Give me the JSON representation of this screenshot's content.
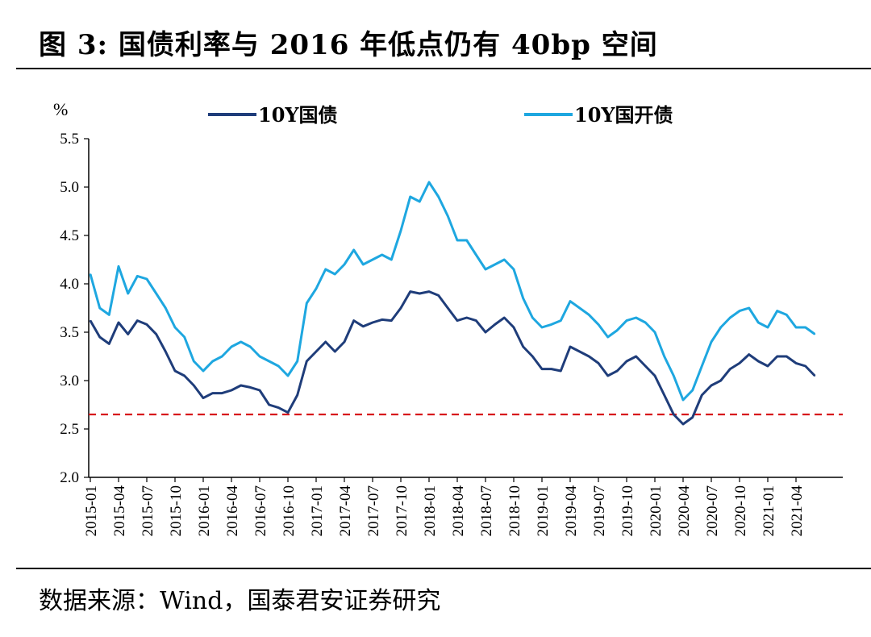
{
  "header": {
    "title": "图 3:  国债利率与 2016 年低点仍有 40bp 空间"
  },
  "footer": {
    "source": "数据来源：Wind，国泰君安证券研究"
  },
  "chart_data": {
    "type": "line",
    "title": "",
    "ylabel": "%",
    "xlabel": "",
    "ylim": [
      2.0,
      5.5
    ],
    "yticks": [
      "2.0",
      "2.5",
      "3.0",
      "3.5",
      "4.0",
      "4.5",
      "5.0",
      "5.5"
    ],
    "categories": [
      "2015-01",
      "2015-04",
      "2015-07",
      "2015-10",
      "2016-01",
      "2016-04",
      "2016-07",
      "2016-10",
      "2017-01",
      "2017-04",
      "2017-07",
      "2017-10",
      "2018-01",
      "2018-04",
      "2018-07",
      "2018-10",
      "2019-01",
      "2019-04",
      "2019-07",
      "2019-10",
      "2020-01",
      "2020-04",
      "2020-07",
      "2020-10",
      "2021-01",
      "2021-04"
    ],
    "reference_line": {
      "value": 2.65,
      "style": "dashed",
      "color": "#d7191c"
    },
    "legend_position": "top",
    "series": [
      {
        "name": "10Y国债",
        "color": "#1f3d7a",
        "points": [
          [
            "2015-01",
            3.62
          ],
          [
            "2015-02",
            3.45
          ],
          [
            "2015-03",
            3.38
          ],
          [
            "2015-04",
            3.6
          ],
          [
            "2015-05",
            3.48
          ],
          [
            "2015-06",
            3.62
          ],
          [
            "2015-07",
            3.58
          ],
          [
            "2015-08",
            3.48
          ],
          [
            "2015-09",
            3.3
          ],
          [
            "2015-10",
            3.1
          ],
          [
            "2015-11",
            3.05
          ],
          [
            "2015-12",
            2.95
          ],
          [
            "2016-01",
            2.82
          ],
          [
            "2016-02",
            2.87
          ],
          [
            "2016-03",
            2.87
          ],
          [
            "2016-04",
            2.9
          ],
          [
            "2016-05",
            2.95
          ],
          [
            "2016-06",
            2.93
          ],
          [
            "2016-07",
            2.9
          ],
          [
            "2016-08",
            2.75
          ],
          [
            "2016-09",
            2.72
          ],
          [
            "2016-10",
            2.67
          ],
          [
            "2016-11",
            2.85
          ],
          [
            "2016-12",
            3.2
          ],
          [
            "2017-01",
            3.3
          ],
          [
            "2017-02",
            3.4
          ],
          [
            "2017-03",
            3.3
          ],
          [
            "2017-04",
            3.4
          ],
          [
            "2017-05",
            3.62
          ],
          [
            "2017-06",
            3.56
          ],
          [
            "2017-07",
            3.6
          ],
          [
            "2017-08",
            3.63
          ],
          [
            "2017-09",
            3.62
          ],
          [
            "2017-10",
            3.75
          ],
          [
            "2017-11",
            3.92
          ],
          [
            "2017-12",
            3.9
          ],
          [
            "2018-01",
            3.92
          ],
          [
            "2018-02",
            3.88
          ],
          [
            "2018-03",
            3.75
          ],
          [
            "2018-04",
            3.62
          ],
          [
            "2018-05",
            3.65
          ],
          [
            "2018-06",
            3.62
          ],
          [
            "2018-07",
            3.5
          ],
          [
            "2018-08",
            3.58
          ],
          [
            "2018-09",
            3.65
          ],
          [
            "2018-10",
            3.55
          ],
          [
            "2018-11",
            3.35
          ],
          [
            "2018-12",
            3.25
          ],
          [
            "2019-01",
            3.12
          ],
          [
            "2019-02",
            3.12
          ],
          [
            "2019-03",
            3.1
          ],
          [
            "2019-04",
            3.35
          ],
          [
            "2019-05",
            3.3
          ],
          [
            "2019-06",
            3.25
          ],
          [
            "2019-07",
            3.18
          ],
          [
            "2019-08",
            3.05
          ],
          [
            "2019-09",
            3.1
          ],
          [
            "2019-10",
            3.2
          ],
          [
            "2019-11",
            3.25
          ],
          [
            "2019-12",
            3.15
          ],
          [
            "2020-01",
            3.05
          ],
          [
            "2020-02",
            2.85
          ],
          [
            "2020-03",
            2.65
          ],
          [
            "2020-04",
            2.55
          ],
          [
            "2020-05",
            2.62
          ],
          [
            "2020-06",
            2.85
          ],
          [
            "2020-07",
            2.95
          ],
          [
            "2020-08",
            3.0
          ],
          [
            "2020-09",
            3.12
          ],
          [
            "2020-10",
            3.18
          ],
          [
            "2020-11",
            3.27
          ],
          [
            "2020-12",
            3.2
          ],
          [
            "2021-01",
            3.15
          ],
          [
            "2021-02",
            3.25
          ],
          [
            "2021-03",
            3.25
          ],
          [
            "2021-04",
            3.18
          ],
          [
            "2021-05",
            3.15
          ],
          [
            "2021-06",
            3.05
          ]
        ]
      },
      {
        "name": "10Y国开债",
        "color": "#1ea7e0",
        "points": [
          [
            "2015-01",
            4.1
          ],
          [
            "2015-02",
            3.75
          ],
          [
            "2015-03",
            3.68
          ],
          [
            "2015-04",
            4.18
          ],
          [
            "2015-05",
            3.9
          ],
          [
            "2015-06",
            4.08
          ],
          [
            "2015-07",
            4.05
          ],
          [
            "2015-08",
            3.9
          ],
          [
            "2015-09",
            3.75
          ],
          [
            "2015-10",
            3.55
          ],
          [
            "2015-11",
            3.45
          ],
          [
            "2015-12",
            3.2
          ],
          [
            "2016-01",
            3.1
          ],
          [
            "2016-02",
            3.2
          ],
          [
            "2016-03",
            3.25
          ],
          [
            "2016-04",
            3.35
          ],
          [
            "2016-05",
            3.4
          ],
          [
            "2016-06",
            3.35
          ],
          [
            "2016-07",
            3.25
          ],
          [
            "2016-08",
            3.2
          ],
          [
            "2016-09",
            3.15
          ],
          [
            "2016-10",
            3.05
          ],
          [
            "2016-11",
            3.2
          ],
          [
            "2016-12",
            3.8
          ],
          [
            "2017-01",
            3.95
          ],
          [
            "2017-02",
            4.15
          ],
          [
            "2017-03",
            4.1
          ],
          [
            "2017-04",
            4.2
          ],
          [
            "2017-05",
            4.35
          ],
          [
            "2017-06",
            4.2
          ],
          [
            "2017-07",
            4.25
          ],
          [
            "2017-08",
            4.3
          ],
          [
            "2017-09",
            4.25
          ],
          [
            "2017-10",
            4.55
          ],
          [
            "2017-11",
            4.9
          ],
          [
            "2017-12",
            4.85
          ],
          [
            "2018-01",
            5.05
          ],
          [
            "2018-02",
            4.9
          ],
          [
            "2018-03",
            4.7
          ],
          [
            "2018-04",
            4.45
          ],
          [
            "2018-05",
            4.45
          ],
          [
            "2018-06",
            4.3
          ],
          [
            "2018-07",
            4.15
          ],
          [
            "2018-08",
            4.2
          ],
          [
            "2018-09",
            4.25
          ],
          [
            "2018-10",
            4.15
          ],
          [
            "2018-11",
            3.85
          ],
          [
            "2018-12",
            3.65
          ],
          [
            "2019-01",
            3.55
          ],
          [
            "2019-02",
            3.58
          ],
          [
            "2019-03",
            3.62
          ],
          [
            "2019-04",
            3.82
          ],
          [
            "2019-05",
            3.75
          ],
          [
            "2019-06",
            3.68
          ],
          [
            "2019-07",
            3.58
          ],
          [
            "2019-08",
            3.45
          ],
          [
            "2019-09",
            3.52
          ],
          [
            "2019-10",
            3.62
          ],
          [
            "2019-11",
            3.65
          ],
          [
            "2019-12",
            3.6
          ],
          [
            "2020-01",
            3.5
          ],
          [
            "2020-02",
            3.25
          ],
          [
            "2020-03",
            3.05
          ],
          [
            "2020-04",
            2.8
          ],
          [
            "2020-05",
            2.9
          ],
          [
            "2020-06",
            3.15
          ],
          [
            "2020-07",
            3.4
          ],
          [
            "2020-08",
            3.55
          ],
          [
            "2020-09",
            3.65
          ],
          [
            "2020-10",
            3.72
          ],
          [
            "2020-11",
            3.75
          ],
          [
            "2020-12",
            3.6
          ],
          [
            "2021-01",
            3.55
          ],
          [
            "2021-02",
            3.72
          ],
          [
            "2021-03",
            3.68
          ],
          [
            "2021-04",
            3.55
          ],
          [
            "2021-05",
            3.55
          ],
          [
            "2021-06",
            3.48
          ]
        ]
      }
    ]
  }
}
